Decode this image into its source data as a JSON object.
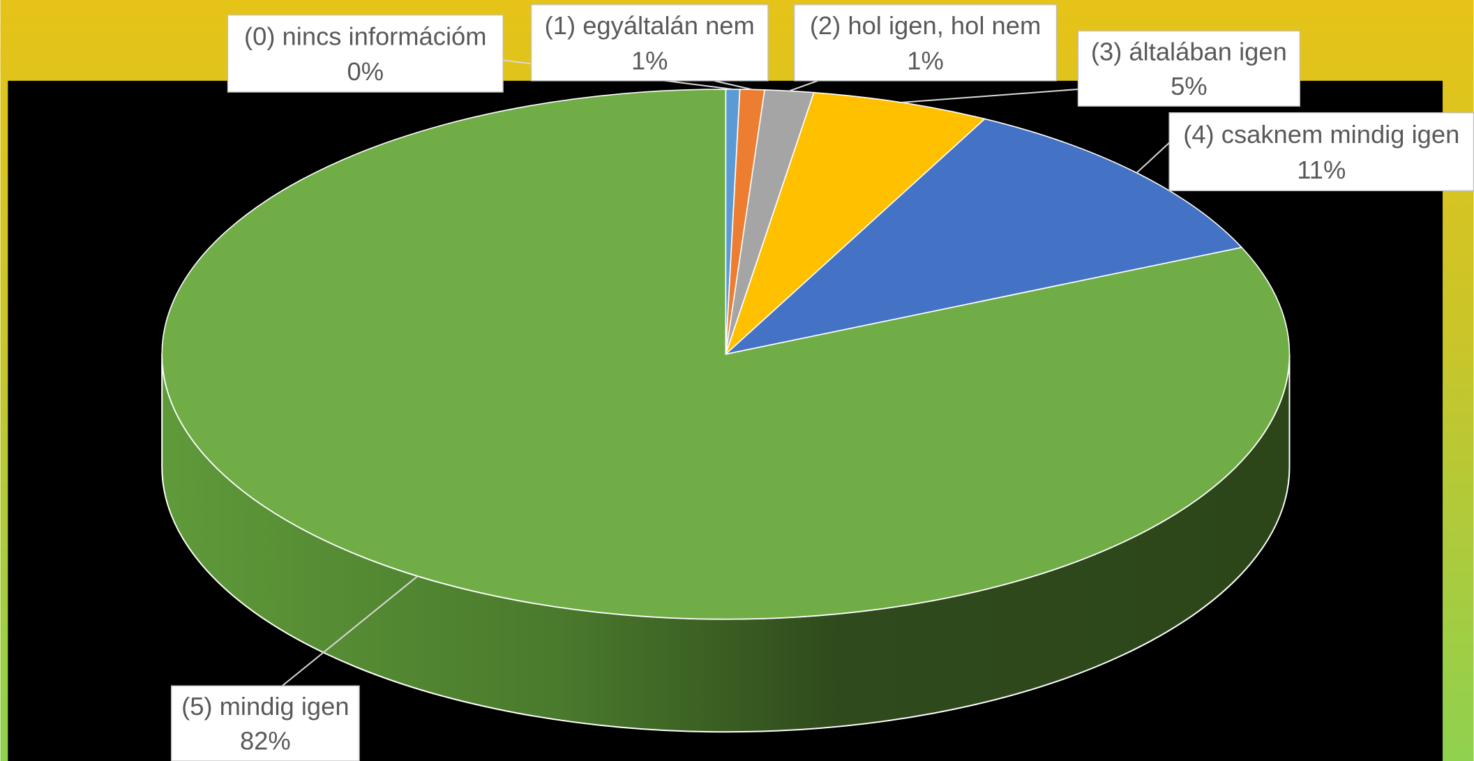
{
  "chart_data": {
    "type": "pie",
    "categories": [
      "(0) nincs információm",
      "(1) egyáltalán nem",
      "(2) hol igen, hol nem",
      "(3) általában igen",
      "(4) csaknem mindig igen",
      "(5) mindig igen"
    ],
    "values": [
      0.4,
      0.7,
      1.4,
      5.1,
      10.8,
      81.6
    ],
    "value_labels": [
      "0%",
      "1%",
      "1%",
      "5%",
      "11%",
      "82%"
    ],
    "colors": [
      "#5b9bd5",
      "#ed7d31",
      "#a5a5a5",
      "#ffc000",
      "#4472c4",
      "#70ad47"
    ]
  }
}
